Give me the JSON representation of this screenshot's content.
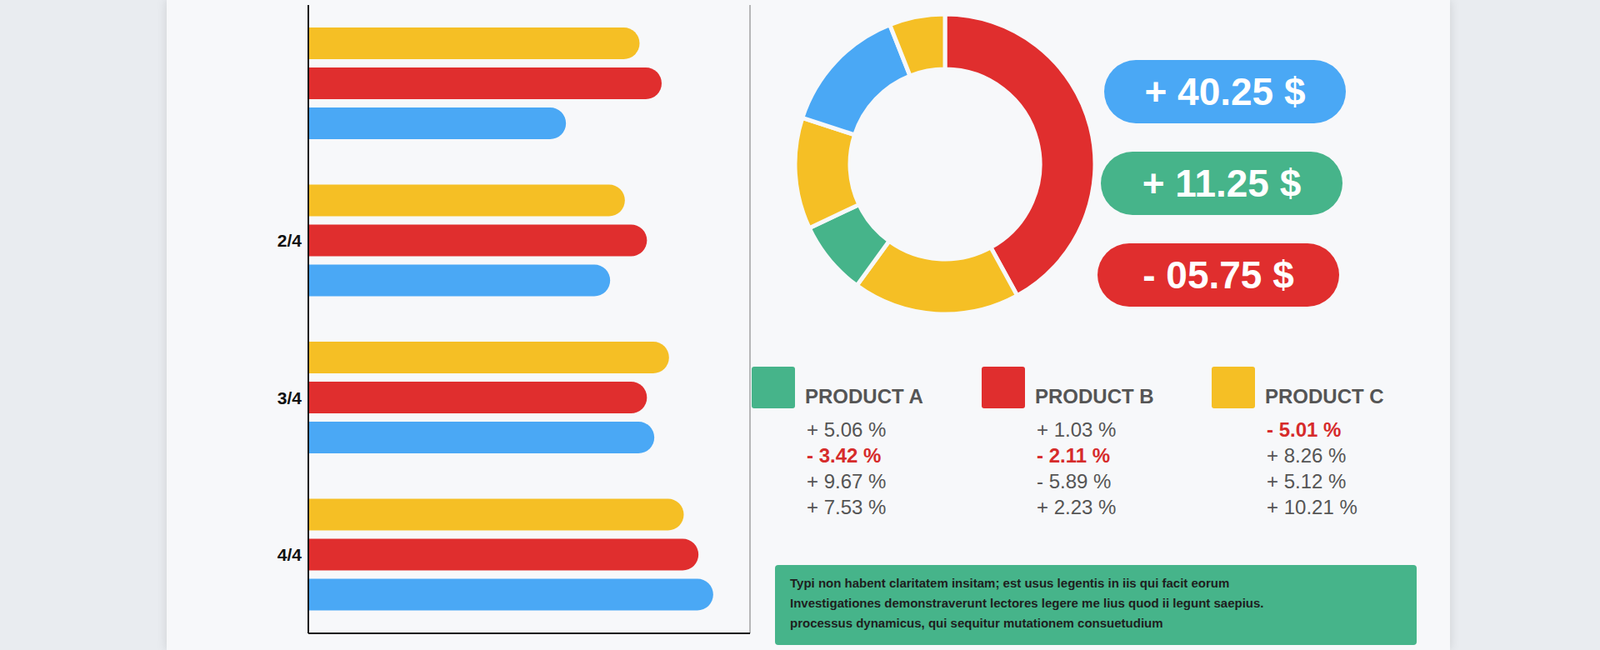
{
  "chart_data": [
    {
      "type": "bar",
      "orientation": "horizontal",
      "categories": [
        null,
        "2/4",
        "3/4",
        "4/4"
      ],
      "series": [
        {
          "color": "#f5bf25",
          "values": [
            4.5,
            4.3,
            4.9,
            5.1
          ]
        },
        {
          "color": "#e02e2e",
          "values": [
            4.8,
            4.6,
            4.6,
            5.3
          ]
        },
        {
          "color": "#4aa8f5",
          "values": [
            3.5,
            4.1,
            4.7,
            5.5
          ]
        }
      ],
      "xlim": [
        0,
        6
      ],
      "xticks": [
        0,
        1,
        2,
        3,
        4,
        5,
        6
      ],
      "grid": true,
      "tick_labels": "y"
    },
    {
      "type": "pie",
      "values": [
        42,
        18,
        8,
        12,
        14,
        6
      ],
      "colors": [
        "#e02e2e",
        "#f5bf25",
        "#46b48a",
        "#f5bf25",
        "#4aa8f5",
        "#f5bf25"
      ]
    }
  ],
  "badges": [
    {
      "text": "+ 40.25 $",
      "color": "#4aa8f5"
    },
    {
      "text": "+ 11.25 $",
      "color": "#46b48a"
    },
    {
      "text": "- 05.75 $",
      "color": "#e02e2e"
    }
  ],
  "products": [
    {
      "name": "PRODUCT A",
      "color": "#46b48a",
      "changes": [
        {
          "text": "+ 5.06 %"
        },
        {
          "text": "- 3.42 %",
          "color": "#d62b2b"
        },
        {
          "text": "+ 9.67 %"
        },
        {
          "text": "+ 7.53 %"
        }
      ]
    },
    {
      "name": "PRODUCT B",
      "color": "#e02e2e",
      "changes": [
        {
          "text": "+ 1.03 %"
        },
        {
          "text": "- 2.11 %",
          "color": "#d62b2b"
        },
        {
          "text": "- 5.89 %"
        },
        {
          "text": "+ 2.23 %"
        }
      ]
    },
    {
      "name": "PRODUCT C",
      "color": "#f5bf25",
      "changes": [
        {
          "text": "- 5.01 %",
          "color": "#d62b2b"
        },
        {
          "text": "+ 8.26 %"
        },
        {
          "text": "+ 5.12 %"
        },
        {
          "text": "+ 10.21 %"
        }
      ]
    }
  ],
  "note": [
    "Typi non habent claritatem insitam; est usus legentis in iis qui facit eorum",
    "Investigationes demonstraverunt lectores legere me lius quod ii legunt saepius.",
    "processus dynamicus, qui sequitur mutationem consuetudium"
  ]
}
